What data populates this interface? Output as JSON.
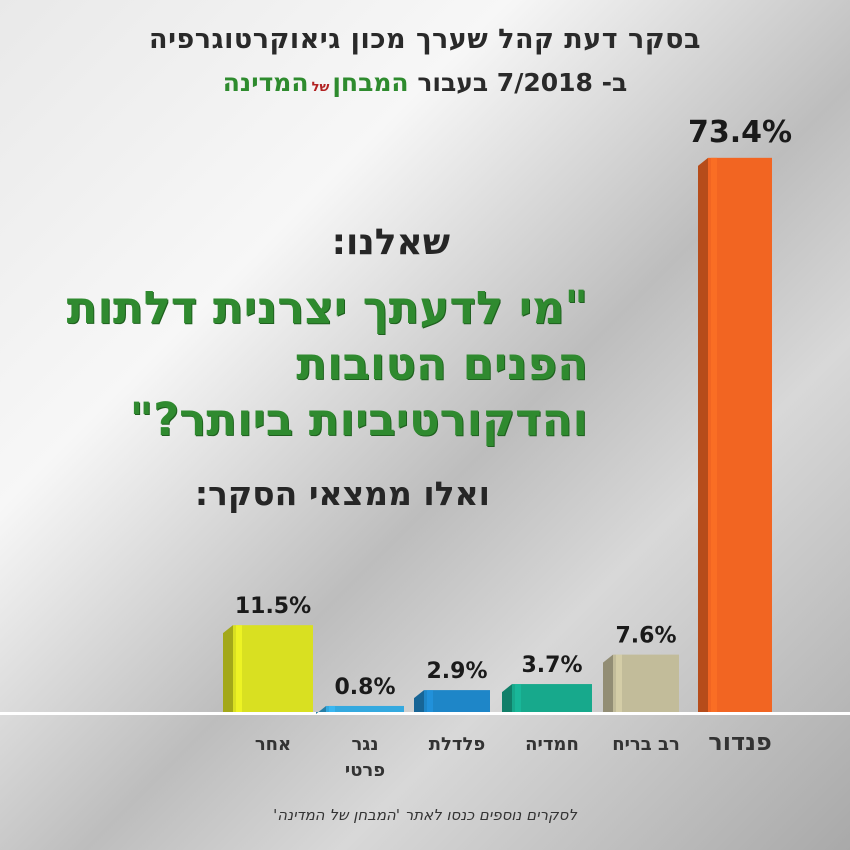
{
  "header": {
    "line1": "בסקר דעת קהל שערך מכון גיאוקרטוגרפיה",
    "line2_prefix": "ב- 7/2018 בעבור",
    "brand_a": "המבחן",
    "brand_of": "של",
    "brand_b": "המדינה"
  },
  "question": {
    "intro": "שאלנו:",
    "text": "\"מי לדעתך יצרנית דלתות הפנים הטובות והדקורטיביות ביותר?\"",
    "outro": "ואלו ממצאי הסקר:"
  },
  "footer": "לסקרים נוספים כנסו לאתר 'המבחן של המדינה'",
  "colors": {
    "pandor": "#f26522",
    "rav_bariach": "#c2bc9a",
    "hamadia": "#17a98c",
    "paldelet": "#1e86c8",
    "nagar": "#34a9df",
    "other": "#d9e021"
  },
  "chart_data": {
    "type": "bar",
    "title": "",
    "xlabel": "",
    "ylabel": "",
    "ylim": [
      0,
      80
    ],
    "categories": [
      "פנדור",
      "רב בריח",
      "חמדיה",
      "פלדלת",
      "נגר פרטי",
      "אחר"
    ],
    "values": [
      73.4,
      7.6,
      3.7,
      2.9,
      0.8,
      11.5
    ],
    "value_labels": [
      "73.4%",
      "7.6%",
      "3.7%",
      "2.9%",
      "0.8%",
      "11.5%"
    ],
    "grid": false,
    "legend": "none"
  }
}
